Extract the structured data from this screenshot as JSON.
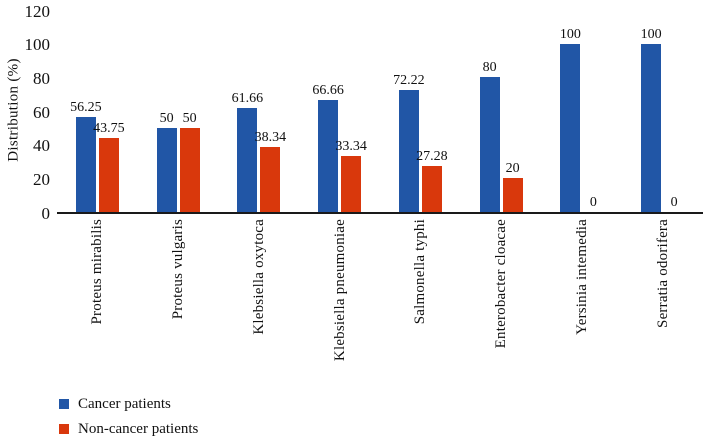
{
  "chart_data": {
    "type": "bar",
    "title": "",
    "xlabel": "",
    "ylabel": "Distribution (%)",
    "ylim": [
      0,
      120
    ],
    "yticks": [
      0,
      20,
      40,
      60,
      80,
      100,
      120
    ],
    "grid": false,
    "legend_position": "bottom-left",
    "bar_value_labels": true,
    "categories": [
      "Proteus mirabilis",
      "Proteus vulgaris",
      "Klebsiella oxytoca",
      "Klebsiella pneumoniae",
      "Salmonella typhi",
      "Enterobacter cloacae",
      "Yersinia intemedia",
      "Serratia odorifera"
    ],
    "series": [
      {
        "name": "Cancer patients",
        "color": "#2156A6",
        "values": [
          56.25,
          50,
          61.66,
          66.66,
          72.22,
          80,
          100,
          100
        ]
      },
      {
        "name": "Non-cancer patients",
        "color": "#D9380C",
        "values": [
          43.75,
          50,
          38.34,
          33.34,
          27.28,
          20,
          0,
          0
        ]
      }
    ]
  },
  "colors": {
    "axis": "#1a1a1a",
    "text": "#111111",
    "background": "#ffffff"
  }
}
